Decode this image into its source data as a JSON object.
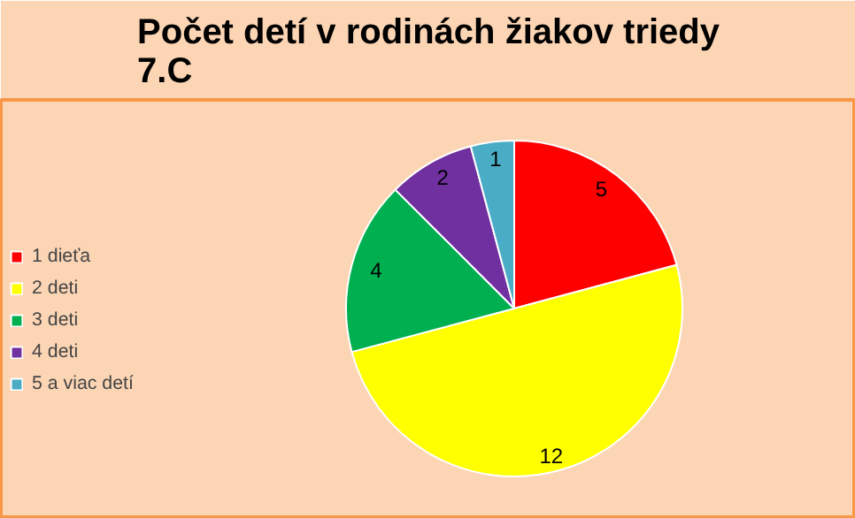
{
  "chart_data": {
    "type": "pie",
    "title": "Počet detí v rodinách žiakov triedy\n7.C",
    "categories": [
      "1 dieťa",
      "2 deti",
      "3 deti",
      "4 deti",
      "5 a viac detí"
    ],
    "values": [
      5,
      12,
      4,
      2,
      1
    ],
    "colors": [
      "#ff0000",
      "#ffff00",
      "#00b050",
      "#7030a0",
      "#4bacc6"
    ],
    "data_labels": true,
    "legend": "left"
  }
}
